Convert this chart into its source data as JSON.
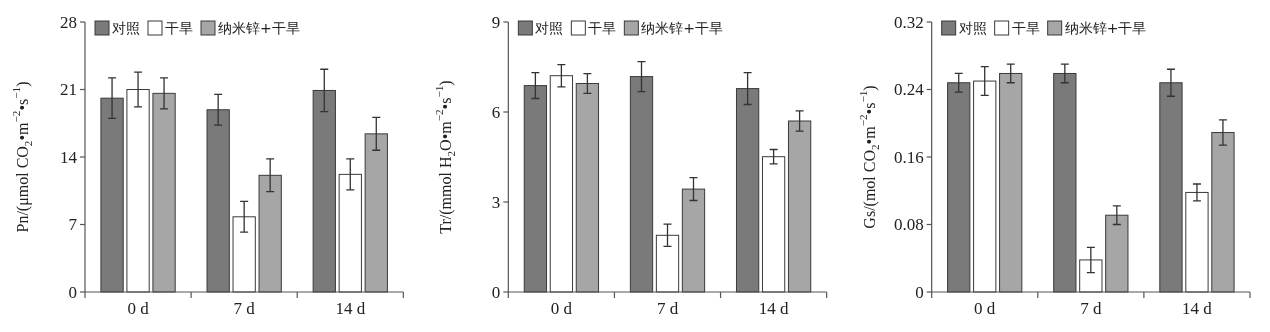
{
  "chart_data": [
    {
      "type": "bar",
      "categories": [
        "0 d",
        "7 d",
        "14 d"
      ],
      "ylabel": "Pn/(μmol CO$_{2}$•m$^{−2}$•s$^{−1}$)",
      "ylim": [
        0,
        28
      ],
      "yticks": [
        0,
        7,
        14,
        21,
        28
      ],
      "legend": "top left",
      "grid": false,
      "series": [
        {
          "name": "对照",
          "color": "#7a7a7a",
          "values": [
            20.1,
            18.9,
            20.9
          ],
          "errors": [
            2.1,
            1.6,
            2.2
          ]
        },
        {
          "name": "干旱",
          "color": "#ffffff",
          "values": [
            21.0,
            7.8,
            12.2
          ],
          "errors": [
            1.8,
            1.6,
            1.6
          ]
        },
        {
          "name": "纳米锌+干旱",
          "color": "#a6a6a6",
          "values": [
            20.6,
            12.1,
            16.4
          ],
          "errors": [
            1.6,
            1.7,
            1.7
          ]
        }
      ]
    },
    {
      "type": "bar",
      "categories": [
        "0 d",
        "7 d",
        "14 d"
      ],
      "ylabel": "Tr/(mmol H$_{2}$O•m$^{−2}$•s$^{−1}$)",
      "ylim": [
        0,
        9
      ],
      "yticks": [
        0,
        3,
        6,
        9
      ],
      "legend": "top left",
      "grid": false,
      "series": [
        {
          "name": "对照",
          "color": "#7a7a7a",
          "values": [
            6.88,
            7.18,
            6.78
          ],
          "errors": [
            0.43,
            0.5,
            0.53
          ]
        },
        {
          "name": "干旱",
          "color": "#ffffff",
          "values": [
            7.21,
            1.89,
            4.51
          ],
          "errors": [
            0.37,
            0.37,
            0.24
          ]
        },
        {
          "name": "纳米锌+干旱",
          "color": "#a6a6a6",
          "values": [
            6.95,
            3.43,
            5.7
          ],
          "errors": [
            0.33,
            0.38,
            0.34
          ]
        }
      ]
    },
    {
      "type": "bar",
      "categories": [
        "0 d",
        "7 d",
        "14 d"
      ],
      "ylabel": "Gs/(mol CO$_{2}$•m$^{−2}$•s$^{−1}$)",
      "ylim": [
        0,
        0.32
      ],
      "yticks": [
        0,
        0.08,
        0.16,
        0.24,
        0.32
      ],
      "legend": "top left",
      "grid": false,
      "series": [
        {
          "name": "对照",
          "color": "#7a7a7a",
          "values": [
            0.248,
            0.259,
            0.248
          ],
          "errors": [
            0.011,
            0.011,
            0.016
          ]
        },
        {
          "name": "干旱",
          "color": "#ffffff",
          "values": [
            0.25,
            0.038,
            0.118
          ],
          "errors": [
            0.017,
            0.015,
            0.01
          ]
        },
        {
          "name": "纳米锌+干旱",
          "color": "#a6a6a6",
          "values": [
            0.259,
            0.091,
            0.189
          ],
          "errors": [
            0.011,
            0.011,
            0.015
          ]
        }
      ]
    }
  ]
}
